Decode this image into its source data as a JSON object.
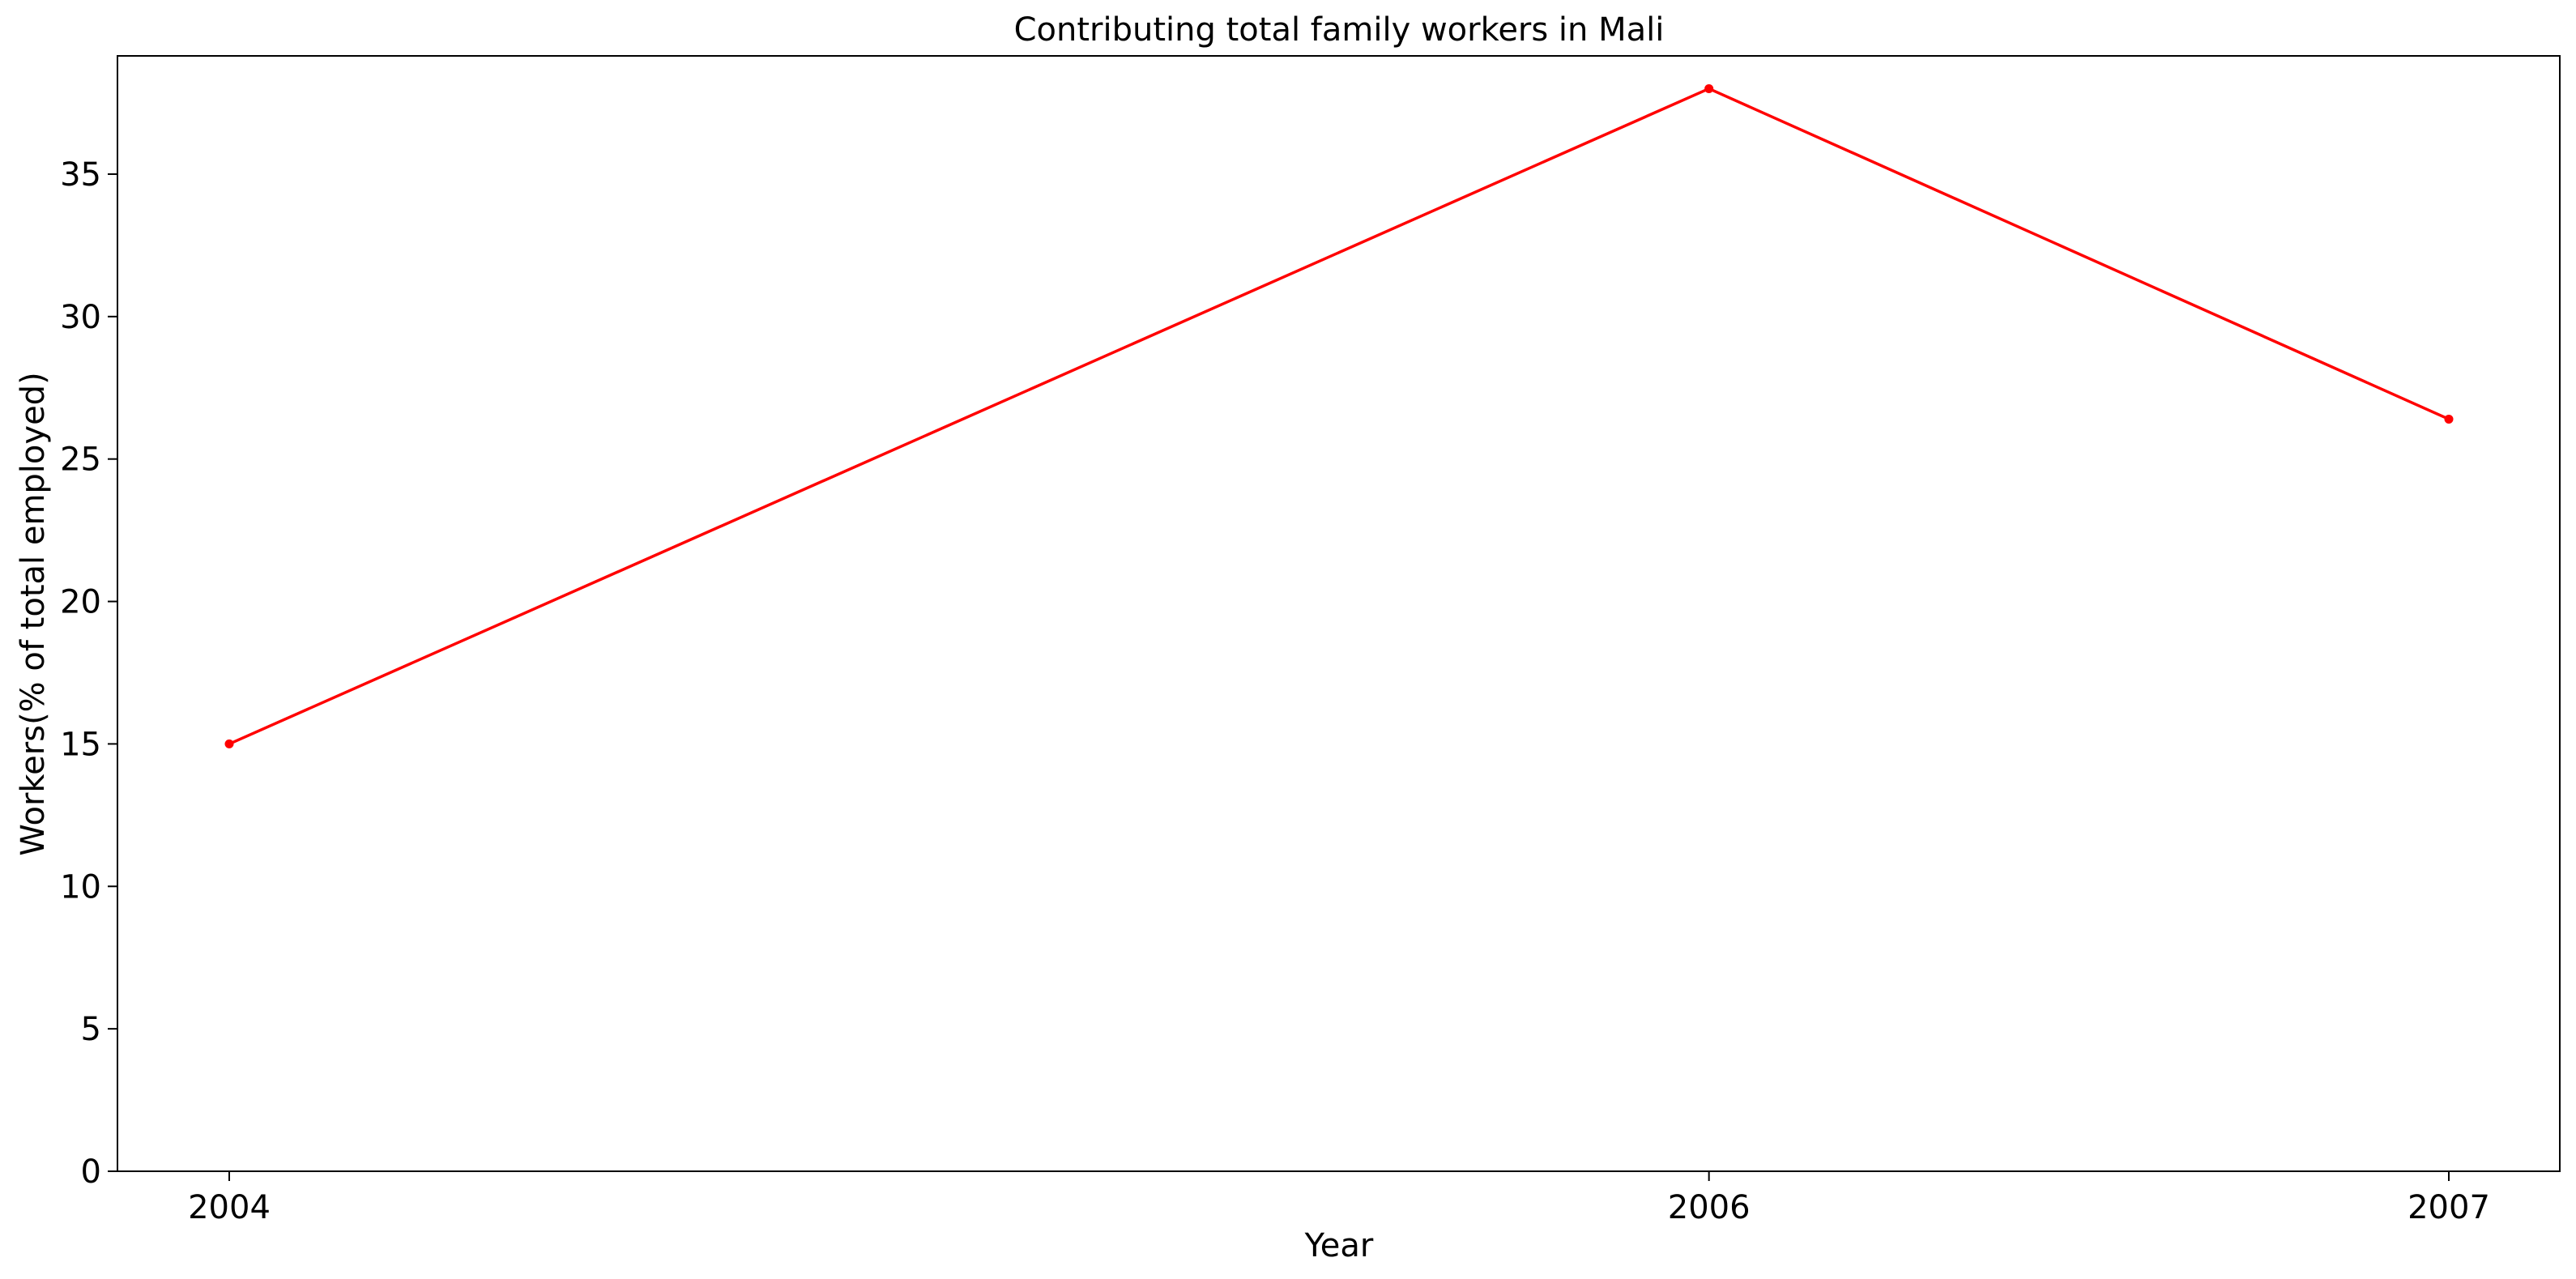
{
  "chart_data": {
    "type": "line",
    "title": "Contributing total family workers in Mali",
    "xlabel": "Year",
    "ylabel": "Workers(% of total employed)",
    "categories": [
      "2004",
      "2006",
      "2007"
    ],
    "series": [
      {
        "values": [
          15.0,
          38.0,
          26.4
        ],
        "color": "#ff0000",
        "marker": "circle"
      }
    ],
    "yticks": [
      0,
      5,
      10,
      15,
      20,
      25,
      30,
      35
    ],
    "ylim": [
      0,
      39.15
    ],
    "grid": false,
    "legend": "none"
  }
}
